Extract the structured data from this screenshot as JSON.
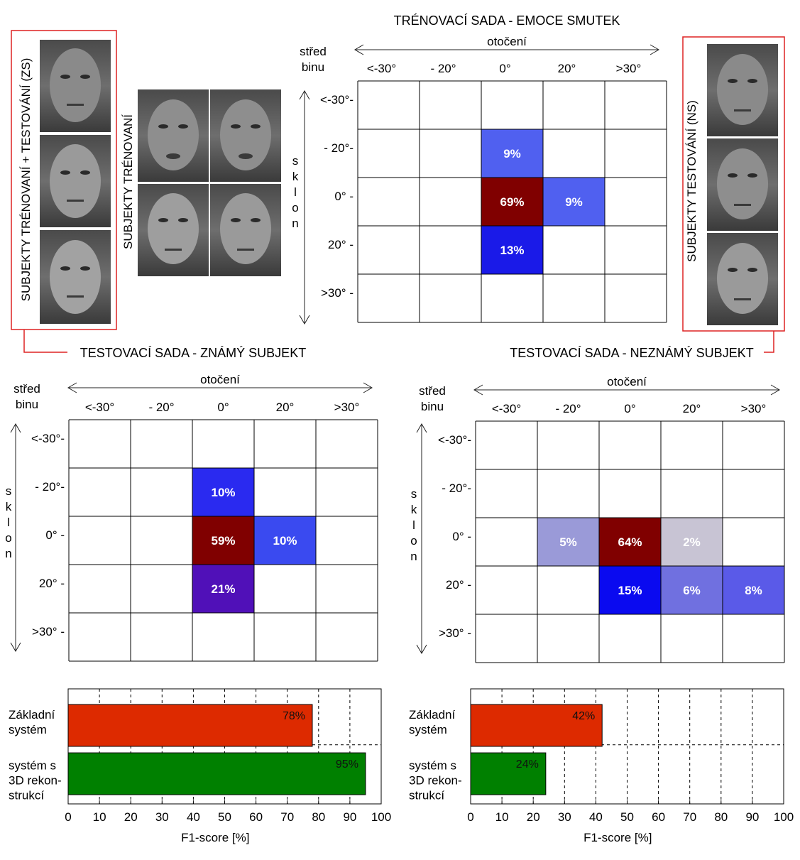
{
  "figure": {
    "top_title": "TRÉNOVACÍ SADA - EMOCE SMUTEK",
    "known_title": "TESTOVACÍ SADA - ZNÁMÝ SUBJEKT",
    "unknown_title": "TESTOVACÍ SADA - NEZNÁMÝ SUBJEKT",
    "zs_label": "SUBJEKTY TRÉNOVANÍ + TESTOVÁNÍ (ZS)",
    "trained_label": "SUBJEKTY TRÉNOVANÍ",
    "ns_label": "SUBJEKTY TESTOVÁNÍ  (NS)",
    "axis_x_name": "otočení",
    "axis_y_letters": [
      "s",
      "k",
      "l",
      "o",
      "n"
    ],
    "bin_center_line1": "střed",
    "bin_center_line2": "binu",
    "col_labels": [
      "<-30°",
      "- 20°",
      "0°",
      "20°",
      ">30°"
    ],
    "row_labels": [
      "<-30°-",
      "- 20°-",
      "0° -",
      "20° -",
      ">30° -"
    ]
  },
  "colors": {
    "frame_red": "#dd2222",
    "bar_red": "#dd2a00",
    "bar_green": "#008000"
  },
  "chart_data": [
    {
      "id": "training-heatmap",
      "type": "heatmap",
      "title": "TRÉNOVACÍ SADA - EMOCE SMUTEK",
      "xlabel": "otočení",
      "ylabel": "sklon",
      "cells": [
        {
          "row": 1,
          "col": 2,
          "value": 9,
          "label": "9%",
          "color": "#5060f0",
          "text_color": "#ffffff"
        },
        {
          "row": 2,
          "col": 2,
          "value": 69,
          "label": "69%",
          "color": "#800000",
          "text_color": "#ffffff"
        },
        {
          "row": 2,
          "col": 3,
          "value": 9,
          "label": "9%",
          "color": "#5060f0",
          "text_color": "#ffffff"
        },
        {
          "row": 3,
          "col": 2,
          "value": 13,
          "label": "13%",
          "color": "#1a1ae8",
          "text_color": "#ffffff"
        }
      ]
    },
    {
      "id": "known-heatmap",
      "type": "heatmap",
      "title": "TESTOVACÍ SADA - ZNÁMÝ SUBJEKT",
      "xlabel": "otočení",
      "ylabel": "sklon",
      "cells": [
        {
          "row": 1,
          "col": 2,
          "value": 10,
          "label": "10%",
          "color": "#2a2af0",
          "text_color": "#ffffff"
        },
        {
          "row": 2,
          "col": 2,
          "value": 59,
          "label": "59%",
          "color": "#800000",
          "text_color": "#ffffff"
        },
        {
          "row": 2,
          "col": 3,
          "value": 10,
          "label": "10%",
          "color": "#3a4af0",
          "text_color": "#ffffff"
        },
        {
          "row": 3,
          "col": 2,
          "value": 21,
          "label": "21%",
          "color": "#5010b8",
          "text_color": "#ffffff"
        }
      ]
    },
    {
      "id": "unknown-heatmap",
      "type": "heatmap",
      "title": "TESTOVACÍ SADA - NEZNÁMÝ SUBJEKT",
      "xlabel": "otočení",
      "ylabel": "sklon",
      "cells": [
        {
          "row": 2,
          "col": 1,
          "value": 5,
          "label": "5%",
          "color": "#9a9ad8",
          "text_color": "#ffffff"
        },
        {
          "row": 2,
          "col": 2,
          "value": 64,
          "label": "64%",
          "color": "#800000",
          "text_color": "#ffffff"
        },
        {
          "row": 2,
          "col": 3,
          "value": 2,
          "label": "2%",
          "color": "#c8c4d4",
          "text_color": "#ffffff"
        },
        {
          "row": 3,
          "col": 2,
          "value": 15,
          "label": "15%",
          "color": "#0a0af0",
          "text_color": "#ffffff"
        },
        {
          "row": 3,
          "col": 3,
          "value": 6,
          "label": "6%",
          "color": "#7070e0",
          "text_color": "#ffffff"
        },
        {
          "row": 3,
          "col": 4,
          "value": 8,
          "label": "8%",
          "color": "#5a5ae8",
          "text_color": "#ffffff"
        }
      ]
    },
    {
      "id": "known-bars",
      "type": "bar",
      "orientation": "horizontal",
      "categories": [
        [
          "Základní",
          "systém"
        ],
        [
          "systém s",
          "3D rekon-",
          "strukcí"
        ]
      ],
      "values": [
        78,
        95
      ],
      "labels": [
        "78%",
        "95%"
      ],
      "xlabel": "F1-score [%]",
      "xlim": [
        0,
        100
      ],
      "ticks": [
        0,
        10,
        20,
        30,
        40,
        50,
        60,
        70,
        80,
        90,
        100
      ],
      "tick_labels": [
        "0",
        "10",
        "20",
        "30",
        "40",
        "50",
        "60",
        "70",
        "80",
        "90",
        "100"
      ]
    },
    {
      "id": "unknown-bars",
      "type": "bar",
      "orientation": "horizontal",
      "categories": [
        [
          "Základní",
          "systém"
        ],
        [
          "systém s",
          "3D rekon-",
          "strukcí"
        ]
      ],
      "values": [
        42,
        24
      ],
      "labels": [
        "42%",
        "24%"
      ],
      "xlabel": "F1-score [%]",
      "xlim": [
        0,
        100
      ],
      "ticks": [
        0,
        10,
        20,
        30,
        40,
        50,
        60,
        70,
        80,
        90,
        100
      ],
      "tick_labels": [
        "0",
        "10",
        "20",
        "30",
        "40",
        "50",
        "60",
        "70",
        "80",
        "90",
        "100"
      ]
    }
  ]
}
